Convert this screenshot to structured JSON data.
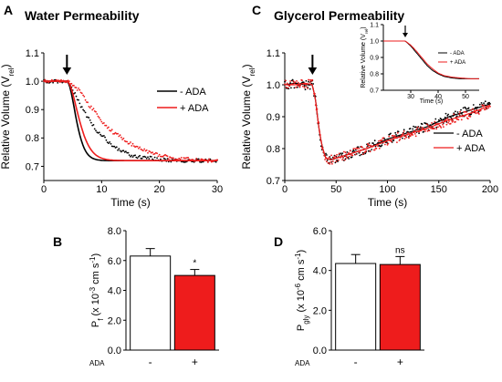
{
  "chart_data": [
    {
      "panel": "A",
      "type": "scatter",
      "title": "Water Permeability",
      "xlabel": "Time (s)",
      "ylabel": "Relative Volume (V",
      "ylabel_sub": "rel",
      "ylabel_close": ")",
      "xlim": [
        0,
        30
      ],
      "ylim": [
        0.65,
        1.1
      ],
      "xticks": [
        "0",
        "10",
        "20",
        "30"
      ],
      "yticks": [
        "0.7",
        "0.8",
        "0.9",
        "1.0",
        "1.1"
      ],
      "arrow_at_x": 4,
      "legend": [
        "- ADA",
        "+ ADA"
      ],
      "series": [
        {
          "name": "- ADA",
          "color": "#000000",
          "fit": {
            "baseline": 1.0,
            "plateau": 0.72,
            "x0": 4,
            "k": 0.32
          },
          "x": [
            0,
            2,
            4,
            5,
            6,
            7,
            8,
            9,
            10,
            11,
            12,
            13,
            14,
            15,
            16,
            18,
            20,
            22,
            25,
            28,
            30
          ],
          "y": [
            1.0,
            1.0,
            1.0,
            0.97,
            0.93,
            0.89,
            0.86,
            0.83,
            0.81,
            0.79,
            0.77,
            0.76,
            0.75,
            0.74,
            0.735,
            0.73,
            0.725,
            0.72,
            0.72,
            0.72,
            0.72
          ]
        },
        {
          "name": "+ ADA",
          "color": "#ee1c1c",
          "fit": {
            "baseline": 1.0,
            "plateau": 0.72,
            "x0": 4,
            "k": 0.2
          },
          "x": [
            0,
            2,
            4,
            5,
            6,
            7,
            8,
            9,
            10,
            11,
            12,
            13,
            14,
            15,
            16,
            18,
            20,
            22,
            25,
            28,
            30
          ],
          "y": [
            1.0,
            1.0,
            1.0,
            0.99,
            0.97,
            0.94,
            0.91,
            0.89,
            0.86,
            0.84,
            0.82,
            0.81,
            0.79,
            0.78,
            0.77,
            0.75,
            0.74,
            0.73,
            0.725,
            0.72,
            0.72
          ]
        }
      ]
    },
    {
      "panel": "C",
      "type": "scatter",
      "title": "Glycerol Permeability",
      "xlabel": "Time (s)",
      "ylabel": "Relative Volume (V",
      "ylabel_sub": "rel",
      "ylabel_close": ")",
      "xlim": [
        0,
        200
      ],
      "ylim": [
        0.7,
        1.1
      ],
      "xticks": [
        "0",
        "50",
        "100",
        "150",
        "200"
      ],
      "yticks": [
        "0.7",
        "0.8",
        "0.9",
        "1.0",
        "1.1"
      ],
      "arrow_at_x": 27,
      "legend": [
        "- ADA",
        "+ ADA"
      ],
      "series": [
        {
          "name": "- ADA",
          "color": "#000000",
          "x": [
            0,
            10,
            20,
            27,
            30,
            33,
            36,
            40,
            45,
            50,
            60,
            80,
            100,
            120,
            140,
            160,
            180,
            200
          ],
          "y": [
            1.0,
            1.005,
            1.0,
            1.0,
            0.95,
            0.87,
            0.81,
            0.77,
            0.765,
            0.77,
            0.78,
            0.8,
            0.83,
            0.85,
            0.87,
            0.9,
            0.92,
            0.94
          ]
        },
        {
          "name": "+ ADA",
          "color": "#ee1c1c",
          "x": [
            0,
            10,
            20,
            27,
            30,
            33,
            36,
            40,
            45,
            50,
            60,
            80,
            100,
            120,
            140,
            160,
            180,
            200
          ],
          "y": [
            1.0,
            1.0,
            1.005,
            1.0,
            0.95,
            0.87,
            0.81,
            0.77,
            0.765,
            0.77,
            0.78,
            0.8,
            0.825,
            0.845,
            0.865,
            0.89,
            0.91,
            0.935
          ]
        }
      ],
      "inset": {
        "type": "line",
        "ylabel": "Relative Volume (V",
        "ylabel_sub": "rel",
        "ylabel_close": ")",
        "xlabel": "Time (s)",
        "xlim": [
          20,
          55
        ],
        "ylim": [
          0.7,
          1.1
        ],
        "xticks": [
          "30",
          "40",
          "50"
        ],
        "yticks": [
          "0.7",
          "0.8",
          "0.9",
          "1.0",
          "1.1"
        ],
        "arrow_at_x": 28,
        "legend": [
          "- ADA",
          "+ ADA"
        ],
        "series": [
          {
            "name": "- ADA",
            "color": "#000000",
            "x": [
              20,
              24,
              28,
              30,
              32,
              34,
              36,
              38,
              40,
              42,
              45,
              48,
              52,
              55
            ],
            "y": [
              1.0,
              1.0,
              1.0,
              0.97,
              0.93,
              0.89,
              0.85,
              0.82,
              0.8,
              0.785,
              0.775,
              0.77,
              0.77,
              0.77
            ]
          },
          {
            "name": "+ ADA",
            "color": "#ee1c1c",
            "x": [
              20,
              24,
              28,
              30,
              32,
              34,
              36,
              38,
              40,
              42,
              45,
              48,
              52,
              55
            ],
            "y": [
              1.0,
              1.0,
              1.0,
              0.975,
              0.94,
              0.9,
              0.86,
              0.83,
              0.805,
              0.79,
              0.78,
              0.775,
              0.77,
              0.77
            ]
          }
        ]
      }
    },
    {
      "panel": "B",
      "type": "bar",
      "categories": [
        "-",
        "+"
      ],
      "category_axis_label": "ADA",
      "values": [
        6.3,
        5.0
      ],
      "errors": [
        0.5,
        0.4
      ],
      "colors": [
        "#ffffff",
        "#ee1c1c"
      ],
      "annotations": [
        "",
        "*"
      ],
      "ylabel": "P",
      "ylabel_sub": "f",
      "ylabel_mid": " (x 10",
      "ylabel_sup": "-3",
      "ylabel_end": " cm s",
      "ylabel_sup2": "-1",
      "ylabel_close": ")",
      "ylim": [
        0,
        8.0
      ],
      "yticks": [
        "0.0",
        "2.0",
        "4.0",
        "6.0",
        "8.0"
      ]
    },
    {
      "panel": "D",
      "type": "bar",
      "categories": [
        "-",
        "+"
      ],
      "category_axis_label": "ADA",
      "values": [
        4.35,
        4.3
      ],
      "errors": [
        0.45,
        0.4
      ],
      "colors": [
        "#ffffff",
        "#ee1c1c"
      ],
      "annotations": [
        "",
        "ns"
      ],
      "ylabel": "P",
      "ylabel_sub": "gly",
      "ylabel_mid": " (x 10",
      "ylabel_sup": "-6",
      "ylabel_end": " cm s",
      "ylabel_sup2": "-1",
      "ylabel_close": ")",
      "ylim": [
        0,
        6.0
      ],
      "yticks": [
        "0.0",
        "2.0",
        "4.0",
        "6.0"
      ]
    }
  ]
}
